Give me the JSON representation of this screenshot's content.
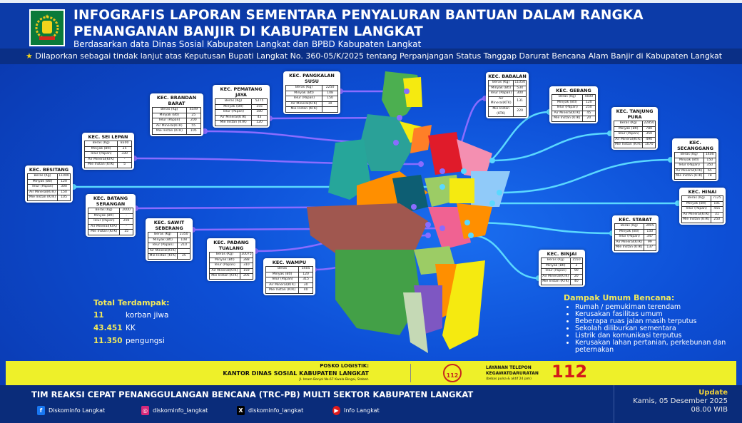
{
  "header": {
    "title_line1": "INFOGRAFIS LAPORAN SEMENTARA PENYALURAN BANTUAN DALAM RANGKA",
    "title_line2": "PENANGANAN BANJIR DI KABUPATEN LANGKAT",
    "subtitle": "Berdasarkan data Dinas Sosial Kabupaten Langkat dan BPBD Kabupaten Langkat",
    "note": "Dilaporkan sebagai tindak lanjut atas Keputusan Bupati Langkat No. 360-05/K/2025 tentang Perpanjangan Status Tanggap Darurat Bencana Alam Banjir di Kabupaten Langkat"
  },
  "row_labels": [
    "Beras (Kg)",
    "Minyak (Btl)",
    "Telur (Papan)",
    "Air Mineral(KTK)",
    "Mie Instan (KTK)"
  ],
  "kecamatan": [
    {
      "name": "KEC. BRANDAN BARAT",
      "values": [
        "4549",
        "25",
        "200",
        "55",
        "105"
      ]
    },
    {
      "name": "KEC. PEMATANG JAYA",
      "values": [
        "5275",
        "155",
        "180",
        "43",
        "120"
      ]
    },
    {
      "name": "KEC. PANGKALAN SUSU",
      "values": [
        "2250",
        "108",
        "150",
        "10",
        ""
      ]
    },
    {
      "name": "KEC. BABALAN",
      "values": [
        "11050",
        "534",
        "300",
        "131",
        "220"
      ]
    },
    {
      "name": "KEC. GEBANG",
      "values": [
        "5600",
        "120",
        "250",
        "45",
        "20"
      ]
    },
    {
      "name": "KEC. TANJUNG PURA",
      "values": [
        "22850",
        "780",
        "350",
        "490",
        "1070"
      ]
    },
    {
      "name": "KEC. SECANGGANG",
      "values": [
        "1400",
        "150",
        "350",
        "65",
        "78"
      ]
    },
    {
      "name": "KEC. HINAI",
      "values": [
        "7125",
        "101",
        "455",
        "31",
        "250"
      ]
    },
    {
      "name": "KEC. STABAT",
      "values": [
        "3945",
        "150",
        "347",
        "99",
        "137"
      ]
    },
    {
      "name": "KEC. BINJAI",
      "values": [
        "1550",
        "3",
        "90",
        "20",
        "40"
      ]
    },
    {
      "name": "KEC. WAMPU",
      "labels": [
        "Beras",
        "Minyak (Btl)",
        "Telur (Papan)",
        "Air Mineral(KTK)",
        "Mie Instan (KTK)"
      ],
      "values": [
        "5405",
        "120",
        "315",
        "30",
        "40"
      ]
    },
    {
      "name": "KEC. PADANG TUALANG",
      "values": [
        "10075",
        "288",
        "310",
        "159",
        "205"
      ]
    },
    {
      "name": "KEC. SAWIT SEBERANG",
      "values": [
        "2350",
        "108",
        "210",
        "",
        "35"
      ]
    },
    {
      "name": "KEC. BATANG SERANGAN",
      "values": [
        "2000",
        "-",
        "200",
        "-",
        "15"
      ]
    },
    {
      "name": "KEC. BESITANG",
      "values": [
        "11000",
        "120",
        "300",
        "150",
        "105"
      ]
    },
    {
      "name": "KEC. SEI LEPAN",
      "values": [
        "8300",
        "25",
        "330",
        "-",
        "5"
      ]
    }
  ],
  "total": {
    "title": "Total Terdampak:",
    "items": [
      {
        "value": "11",
        "label": "korban jiwa"
      },
      {
        "value": "43.451",
        "label": "KK"
      },
      {
        "value": "11.350",
        "label": "pengungsi"
      }
    ]
  },
  "dampak": {
    "title": "Dampak Umum Bencana:",
    "items": [
      "Rumah / pemukiman terendam",
      "Kerusakan fasilitas umum",
      "Beberapa ruas jalan masih terputus",
      "Sekolah diliburkan sementara",
      "Listrik dan komunikasi terputus",
      "Kerusakan lahan pertanian, perkebunan dan peternakan"
    ]
  },
  "posko": {
    "label": "POSKO LOGISTIK:",
    "name": "KANTOR DINAS SOSIAL KABUPATEN LANGKAT",
    "address": "Jl. Imam Bonjol No.67 Kwala Bingai, Stabat."
  },
  "layanan": {
    "line1": "LAYANAN TELEPON",
    "line2": "KEGAWATDARURATAN",
    "note": "(bebas pulsa & aktif 24 jam)",
    "number": "112",
    "icon_text": "112"
  },
  "footer": {
    "team": "TIM REAKSI CEPAT PENANGGULANGAN BENCANA (TRC-PB) MULTI SEKTOR KABUPATEN LANGKAT",
    "social": [
      {
        "icon": "facebook-icon",
        "label": "Diskominfo Langkat",
        "color": "#1877f2",
        "glyph": "f"
      },
      {
        "icon": "instagram-icon",
        "label": "diskominfo_langkat",
        "color": "#d6297a",
        "glyph": "◎"
      },
      {
        "icon": "x-icon",
        "label": "diskominfo_langkat",
        "color": "#000000",
        "glyph": "X"
      },
      {
        "icon": "youtube-icon",
        "label": "Info Langkat",
        "color": "#e01b1b",
        "glyph": "▶"
      }
    ],
    "update_label": "Update",
    "update_date": "Kamis, 05 Desember 2025",
    "update_time": "08.00 WIB"
  }
}
